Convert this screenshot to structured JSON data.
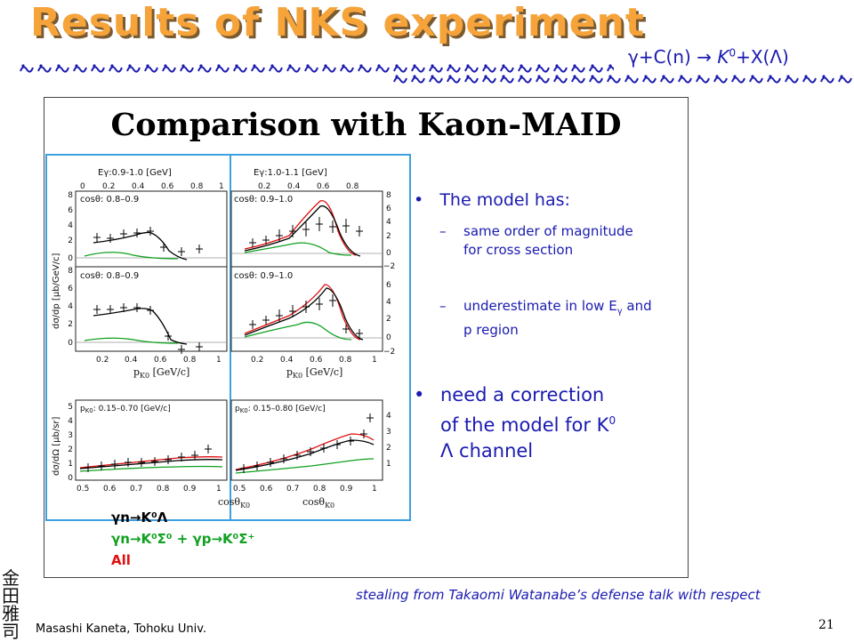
{
  "slide": {
    "title": "Results of NKS experiment",
    "reaction": {
      "lead": "γ+C(n) → ",
      "k": "K",
      "k_sup": "0",
      "tail": "+X(Λ)"
    },
    "figure_title": "Comparison with Kaon-MAID",
    "bullets": [
      {
        "text": "The model has:",
        "subs": [
          "same order of magnitude for cross section",
          "underestimate in low E",
          "γ",
          " and p region"
        ]
      },
      {
        "text_lines": [
          "need a correction",
          "of the model for K",
          "0",
          "Λ channel"
        ]
      }
    ],
    "legend": {
      "line1": "γn→K⁰Λ",
      "line2": "γn→K⁰Σ⁰ + γp→K⁰Σ⁺",
      "line3": "All",
      "colors": {
        "line1": "#000000",
        "line2": "#10a020",
        "line3": "#e01010"
      }
    },
    "credit": "stealing from Takaomi Watanabe’s defense talk with respect",
    "author": "Masashi Kaneta, Tohoku Univ.",
    "page_number": "21",
    "seal_chars": [
      "金",
      "田",
      "雅",
      "司"
    ],
    "colors": {
      "title": "#f6a33a",
      "text_blue": "#1a1ab0",
      "box_blue": "#3da0e0"
    }
  },
  "figure": {
    "panels": {
      "tl_head": "Eγ:0.9-1.0 [GeV]",
      "tr_head": "Eγ:1.0-1.1 [GeV]",
      "r1_left": "cosθ: 0.8–0.9",
      "r1_right": "cosθ: 0.9–1.0",
      "r2_left": "cosθ: 0.8–0.9",
      "r2_right": "cosθ: 0.9–1.0",
      "r3_left": "p",
      "r3_left_sub": "K0",
      "r3_left_rest": ": 0.15–0.70 [GeV/c]",
      "r3_right": "p",
      "r3_right_sub": "K0",
      "r3_right_rest": ": 0.15–0.80 [GeV/c]",
      "ylabel_top": "dσ/dp [μb/GeV/c]",
      "ylabel_bottom": "dσ/dΩ [μb/sr]",
      "xlabel_mid": "p",
      "xlabel_mid_sub": "K0",
      "xlabel_mid_rest": " [GeV/c]",
      "xlabel_bottom": "cosθ",
      "xlabel_bottom_sub": "K0"
    },
    "ticks": {
      "p_top": [
        "0",
        "0.2",
        "0.4",
        "0.6",
        "0.8",
        "1",
        "0.2",
        "0.4",
        "0.6",
        "0.8"
      ],
      "p_left": [
        "0.2",
        "0.4",
        "0.6",
        "0.8",
        "1"
      ],
      "p_right": [
        "0.2",
        "0.4",
        "0.6",
        "0.8",
        "1"
      ],
      "y_top_left": [
        "8",
        "6",
        "4",
        "2",
        "0"
      ],
      "y_top_right": [
        "8",
        "6",
        "4",
        "2",
        "0",
        "−2"
      ],
      "y_mid_left": [
        "8",
        "6",
        "4",
        "2",
        "0"
      ],
      "y_mid_right": [
        "6",
        "4",
        "2",
        "0",
        "−2"
      ],
      "y_bot_left": [
        "5",
        "4",
        "3",
        "2",
        "1",
        "0"
      ],
      "y_bot_right": [
        "4",
        "3",
        "2",
        "1"
      ],
      "cos_left": [
        "0.5",
        "0.6",
        "0.7",
        "0.8",
        "0.9",
        "1"
      ],
      "cos_right": [
        "0.5",
        "0.6",
        "0.7",
        "0.8",
        "0.9",
        "1"
      ]
    }
  }
}
